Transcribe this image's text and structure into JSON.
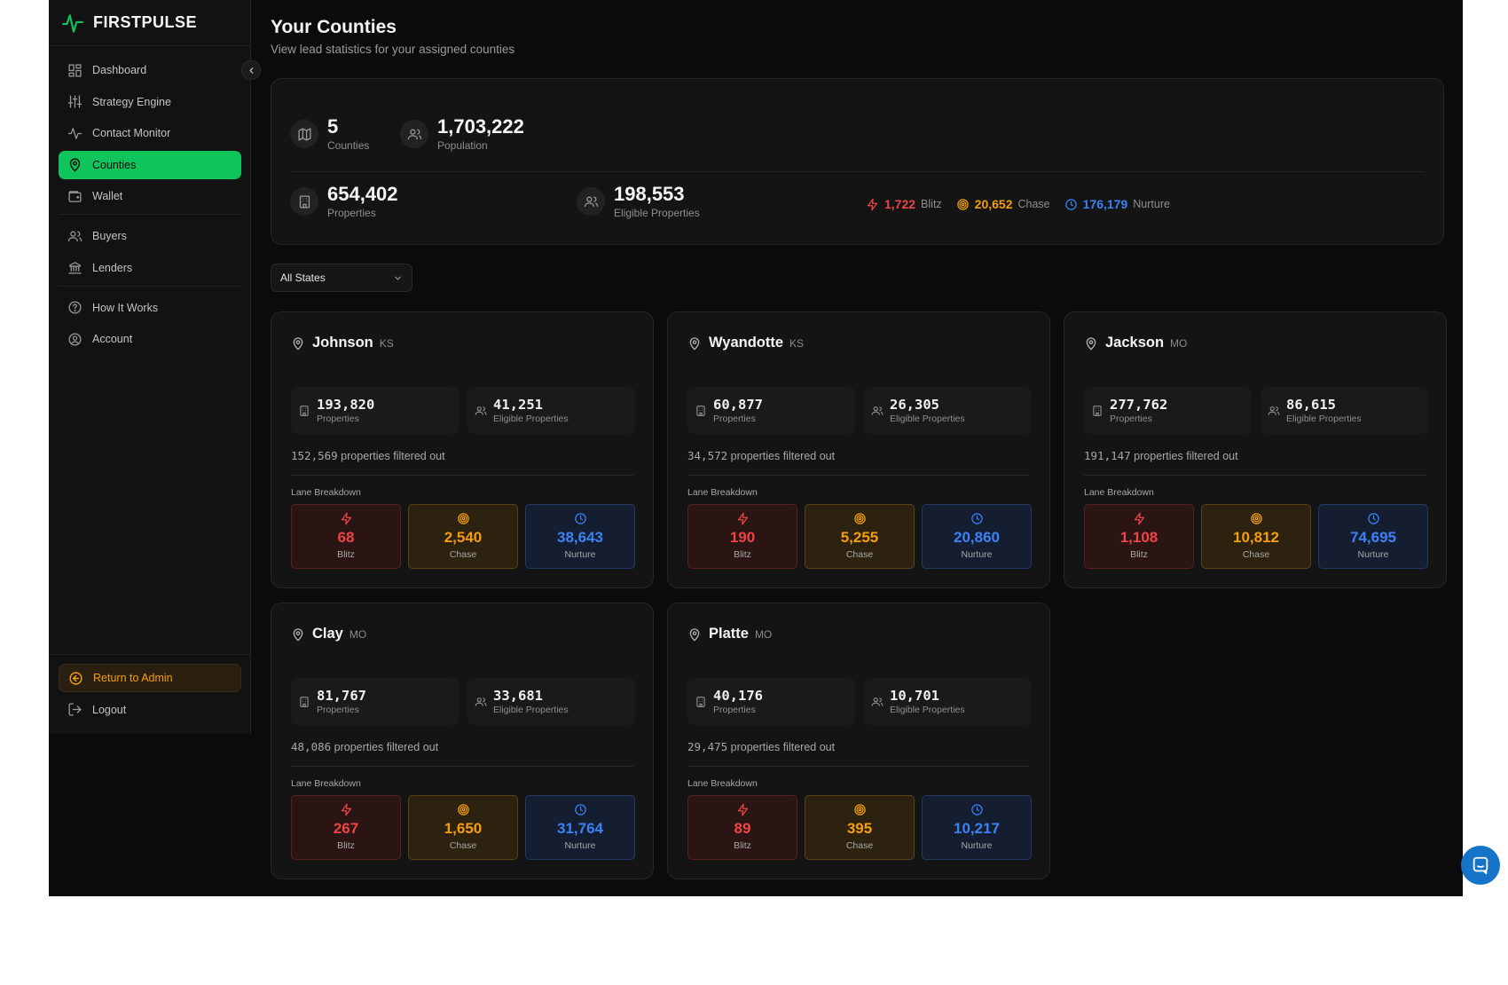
{
  "brand": {
    "name": "FIRSTPULSE",
    "accent": "#10c45c"
  },
  "sidebar": {
    "items": [
      {
        "label": "Dashboard",
        "icon": "dashboard-icon"
      },
      {
        "label": "Strategy Engine",
        "icon": "sliders-icon"
      },
      {
        "label": "Contact Monitor",
        "icon": "activity-icon"
      },
      {
        "label": "Counties",
        "icon": "map-pin-icon",
        "active": true
      },
      {
        "label": "Wallet",
        "icon": "wallet-icon"
      },
      {
        "label": "Buyers",
        "icon": "users-icon"
      },
      {
        "label": "Lenders",
        "icon": "bank-icon"
      },
      {
        "label": "How It Works",
        "icon": "help-circle-icon"
      },
      {
        "label": "Account",
        "icon": "user-circle-icon"
      }
    ],
    "return_admin": "Return to Admin",
    "logout": "Logout"
  },
  "page": {
    "title": "Your Counties",
    "subtitle": "View lead statistics for your assigned counties"
  },
  "summary": {
    "counties": {
      "value": "5",
      "label": "Counties"
    },
    "population": {
      "value": "1,703,222",
      "label": "Population"
    },
    "properties": {
      "value": "654,402",
      "label": "Properties"
    },
    "eligible": {
      "value": "198,553",
      "label": "Eligible Properties"
    },
    "blitz": {
      "value": "1,722",
      "label": "Blitz"
    },
    "chase": {
      "value": "20,652",
      "label": "Chase"
    },
    "nurture": {
      "value": "176,179",
      "label": "Nurture"
    }
  },
  "filter": {
    "selected": "All States"
  },
  "labels": {
    "properties": "Properties",
    "eligible": "Eligible Properties",
    "lane_breakdown": "Lane Breakdown",
    "blitz": "Blitz",
    "chase": "Chase",
    "nurture": "Nurture",
    "filtered_suffix": "properties filtered out"
  },
  "counties": [
    {
      "name": "Johnson",
      "state": "KS",
      "properties": "193,820",
      "eligible": "41,251",
      "filtered": "152,569",
      "blitz": "68",
      "chase": "2,540",
      "nurture": "38,643"
    },
    {
      "name": "Wyandotte",
      "state": "KS",
      "properties": "60,877",
      "eligible": "26,305",
      "filtered": "34,572",
      "blitz": "190",
      "chase": "5,255",
      "nurture": "20,860"
    },
    {
      "name": "Jackson",
      "state": "MO",
      "properties": "277,762",
      "eligible": "86,615",
      "filtered": "191,147",
      "blitz": "1,108",
      "chase": "10,812",
      "nurture": "74,695"
    },
    {
      "name": "Clay",
      "state": "MO",
      "properties": "81,767",
      "eligible": "33,681",
      "filtered": "48,086",
      "blitz": "267",
      "chase": "1,650",
      "nurture": "31,764"
    },
    {
      "name": "Platte",
      "state": "MO",
      "properties": "40,176",
      "eligible": "10,701",
      "filtered": "29,475",
      "blitz": "89",
      "chase": "395",
      "nurture": "10,217"
    }
  ],
  "colors": {
    "blitz": "#ef4444",
    "chase": "#f59e0b",
    "nurture": "#3b82f6"
  }
}
